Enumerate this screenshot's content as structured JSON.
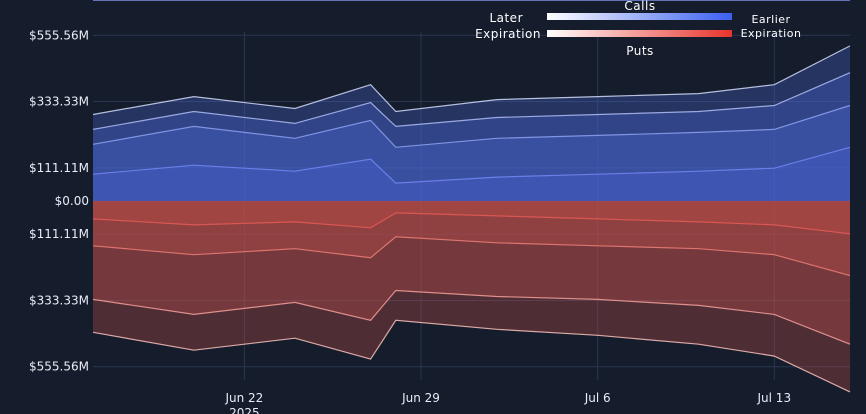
{
  "chart_data": {
    "type": "area",
    "x_type": "date",
    "x_range": [
      "2025-06-16",
      "2025-07-16"
    ],
    "y_range": [
      -600000000,
      600000000
    ],
    "y_ticks": [
      {
        "value": 555560000,
        "label": "$555.56M"
      },
      {
        "value": 333330000,
        "label": "$333.33M"
      },
      {
        "value": 111110000,
        "label": "$111.11M"
      },
      {
        "value": 0,
        "label": "$0.00"
      },
      {
        "value": -111110000,
        "label": "$111.11M"
      },
      {
        "value": -333330000,
        "label": "$333.33M"
      },
      {
        "value": -555560000,
        "label": "$555.56M"
      }
    ],
    "x_ticks": [
      {
        "value": "2025-06-22",
        "label": "Jun 22",
        "sublabel": "2025"
      },
      {
        "value": "2025-06-29",
        "label": "Jun 29",
        "sublabel": ""
      },
      {
        "value": "2025-07-06",
        "label": "Jul 6",
        "sublabel": ""
      },
      {
        "value": "2025-07-13",
        "label": "Jul 13",
        "sublabel": ""
      }
    ],
    "grid": true,
    "legend": {
      "calls_title": "Calls",
      "puts_title": "Puts",
      "left_label_1": "Later",
      "left_label_2": "Expiration",
      "right_label_1": "Earlier",
      "right_label_2": "Expiration",
      "calls_gradient": [
        "#ffffff",
        "#3b5ff0"
      ],
      "puts_gradient": [
        "#ffffff",
        "#e8342c"
      ]
    },
    "series": [
      {
        "group": "calls",
        "x": [
          "2025-06-16",
          "2025-06-20",
          "2025-06-24",
          "2025-06-27",
          "2025-06-28",
          "2025-07-02",
          "2025-07-06",
          "2025-07-10",
          "2025-07-13",
          "2025-07-16"
        ],
        "y": [
          290000000,
          350000000,
          310000000,
          390000000,
          300000000,
          340000000,
          350000000,
          360000000,
          390000000,
          520000000
        ],
        "color": "#c8d0f0"
      },
      {
        "group": "calls",
        "x": [
          "2025-06-16",
          "2025-06-20",
          "2025-06-24",
          "2025-06-27",
          "2025-06-28",
          "2025-07-02",
          "2025-07-06",
          "2025-07-10",
          "2025-07-13",
          "2025-07-16"
        ],
        "y": [
          240000000,
          300000000,
          260000000,
          330000000,
          250000000,
          280000000,
          290000000,
          300000000,
          320000000,
          430000000
        ],
        "color": "#a8b6ee"
      },
      {
        "group": "calls",
        "x": [
          "2025-06-16",
          "2025-06-20",
          "2025-06-24",
          "2025-06-27",
          "2025-06-28",
          "2025-07-02",
          "2025-07-06",
          "2025-07-10",
          "2025-07-13",
          "2025-07-16"
        ],
        "y": [
          190000000,
          250000000,
          210000000,
          270000000,
          180000000,
          210000000,
          220000000,
          230000000,
          240000000,
          320000000
        ],
        "color": "#8a9cec"
      },
      {
        "group": "calls",
        "x": [
          "2025-06-16",
          "2025-06-20",
          "2025-06-24",
          "2025-06-27",
          "2025-06-28",
          "2025-07-02",
          "2025-07-06",
          "2025-07-10",
          "2025-07-13",
          "2025-07-16"
        ],
        "y": [
          90000000,
          120000000,
          100000000,
          140000000,
          60000000,
          80000000,
          90000000,
          100000000,
          110000000,
          180000000
        ],
        "color": "#6f84ee"
      },
      {
        "group": "puts",
        "x": [
          "2025-06-16",
          "2025-06-20",
          "2025-06-24",
          "2025-06-27",
          "2025-06-28",
          "2025-07-02",
          "2025-07-06",
          "2025-07-10",
          "2025-07-13",
          "2025-07-16"
        ],
        "y": [
          -440000000,
          -500000000,
          -460000000,
          -530000000,
          -400000000,
          -430000000,
          -450000000,
          -480000000,
          -520000000,
          -640000000
        ],
        "color": "#f0b8b4"
      },
      {
        "group": "puts",
        "x": [
          "2025-06-16",
          "2025-06-20",
          "2025-06-24",
          "2025-06-27",
          "2025-06-28",
          "2025-07-02",
          "2025-07-06",
          "2025-07-10",
          "2025-07-13",
          "2025-07-16"
        ],
        "y": [
          -330000000,
          -380000000,
          -340000000,
          -400000000,
          -300000000,
          -320000000,
          -330000000,
          -350000000,
          -380000000,
          -480000000
        ],
        "color": "#ec9a96"
      },
      {
        "group": "puts",
        "x": [
          "2025-06-16",
          "2025-06-20",
          "2025-06-24",
          "2025-06-27",
          "2025-06-28",
          "2025-07-02",
          "2025-07-06",
          "2025-07-10",
          "2025-07-13",
          "2025-07-16"
        ],
        "y": [
          -150000000,
          -180000000,
          -160000000,
          -190000000,
          -120000000,
          -140000000,
          -150000000,
          -160000000,
          -180000000,
          -250000000
        ],
        "color": "#e77a74"
      },
      {
        "group": "puts",
        "x": [
          "2025-06-16",
          "2025-06-20",
          "2025-06-24",
          "2025-06-27",
          "2025-06-28",
          "2025-07-02",
          "2025-07-06",
          "2025-07-10",
          "2025-07-13",
          "2025-07-16"
        ],
        "y": [
          -60000000,
          -80000000,
          -70000000,
          -90000000,
          -40000000,
          -50000000,
          -60000000,
          -70000000,
          -80000000,
          -110000000
        ],
        "color": "#e05a54"
      }
    ]
  }
}
